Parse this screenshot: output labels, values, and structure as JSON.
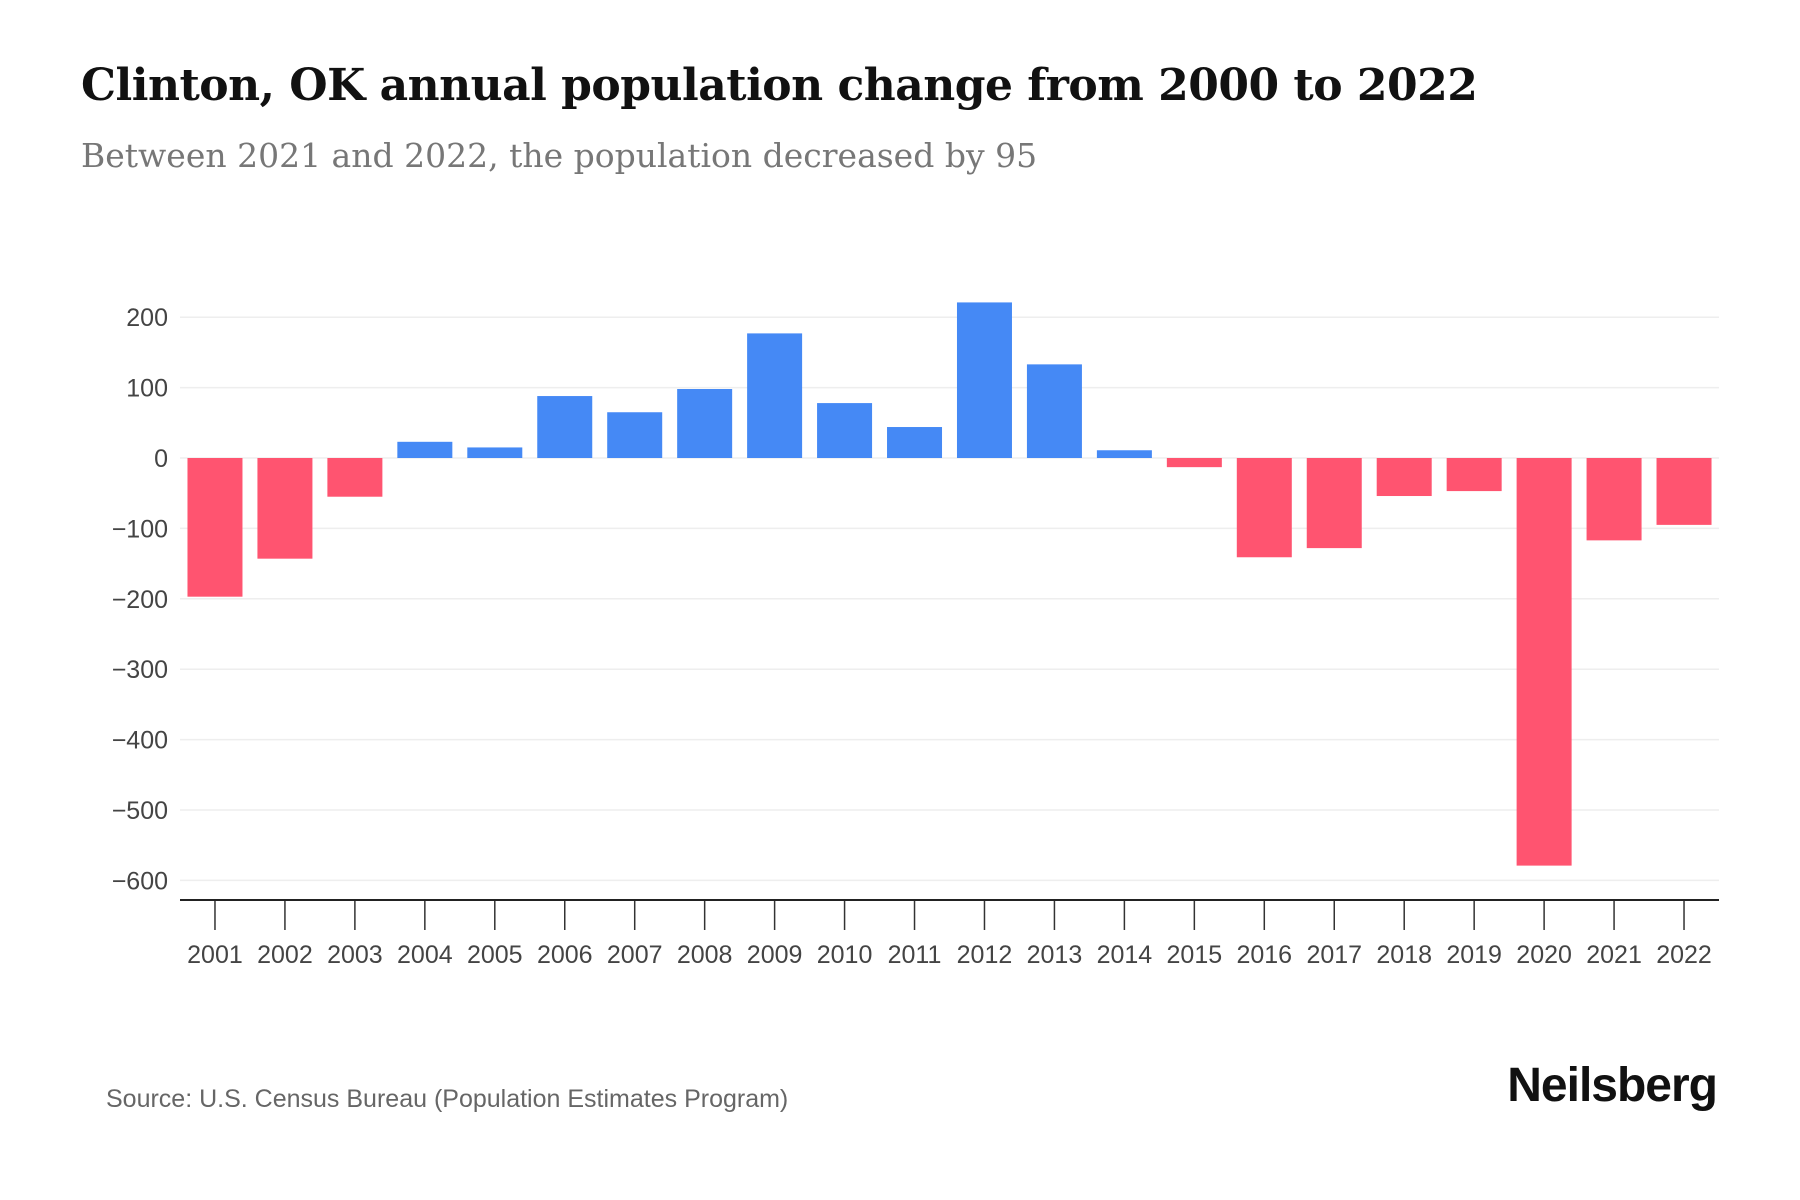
{
  "title": "Clinton, OK annual population change from 2000 to 2022",
  "subtitle": "Between 2021 and 2022, the population decreased by 95",
  "source": "Source: U.S. Census Bureau (Population Estimates Program)",
  "brand": "Neilsberg",
  "chart_data": {
    "type": "bar",
    "title": "Clinton, OK annual population change from 2000 to 2022",
    "xlabel": "",
    "ylabel": "",
    "ylim": [
      -625,
      230
    ],
    "yticks": [
      200,
      100,
      0,
      -100,
      -200,
      -300,
      -400,
      -500,
      -600
    ],
    "ytick_labels": [
      "200",
      "100",
      "0",
      "−100",
      "−200",
      "−300",
      "−400",
      "−500",
      "−600"
    ],
    "grid": true,
    "categories": [
      "2001",
      "2002",
      "2003",
      "2004",
      "2005",
      "2006",
      "2007",
      "2008",
      "2009",
      "2010",
      "2011",
      "2012",
      "2013",
      "2014",
      "2015",
      "2016",
      "2017",
      "2018",
      "2019",
      "2020",
      "2021",
      "2022"
    ],
    "values": [
      -197,
      -143,
      -55,
      23,
      15,
      88,
      65,
      98,
      177,
      78,
      44,
      221,
      133,
      11,
      -13,
      -141,
      -128,
      -54,
      -47,
      -579,
      -117,
      -95
    ],
    "colors": {
      "positive": "#4589f5",
      "negative": "#ff5470"
    }
  }
}
